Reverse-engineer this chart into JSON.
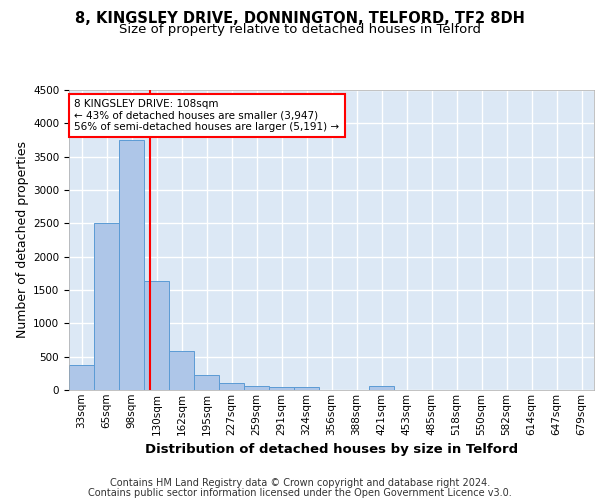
{
  "title_line1": "8, KINGSLEY DRIVE, DONNINGTON, TELFORD, TF2 8DH",
  "title_line2": "Size of property relative to detached houses in Telford",
  "xlabel": "Distribution of detached houses by size in Telford",
  "ylabel": "Number of detached properties",
  "footnote1": "Contains HM Land Registry data © Crown copyright and database right 2024.",
  "footnote2": "Contains public sector information licensed under the Open Government Licence v3.0.",
  "property_line1": "8 KINGSLEY DRIVE: 108sqm",
  "property_line2": "← 43% of detached houses are smaller (3,947)",
  "property_line3": "56% of semi-detached houses are larger (5,191) →",
  "bar_labels": [
    "33sqm",
    "65sqm",
    "98sqm",
    "130sqm",
    "162sqm",
    "195sqm",
    "227sqm",
    "259sqm",
    "291sqm",
    "324sqm",
    "356sqm",
    "388sqm",
    "421sqm",
    "453sqm",
    "485sqm",
    "518sqm",
    "550sqm",
    "582sqm",
    "614sqm",
    "647sqm",
    "679sqm"
  ],
  "bar_values": [
    370,
    2500,
    3750,
    1640,
    590,
    220,
    100,
    65,
    45,
    50,
    0,
    0,
    65,
    0,
    0,
    0,
    0,
    0,
    0,
    0,
    0
  ],
  "bar_color": "#aec6e8",
  "bar_edge_color": "#5b9bd5",
  "vline_x": 2.75,
  "vline_color": "red",
  "ylim": [
    0,
    4500
  ],
  "yticks": [
    0,
    500,
    1000,
    1500,
    2000,
    2500,
    3000,
    3500,
    4000,
    4500
  ],
  "bg_color": "#dce8f5",
  "grid_color": "#ffffff",
  "title_fontsize": 10.5,
  "subtitle_fontsize": 9.5,
  "axis_label_fontsize": 9,
  "tick_fontsize": 7.5,
  "footnote_fontsize": 7,
  "annot_fontsize": 7.5
}
